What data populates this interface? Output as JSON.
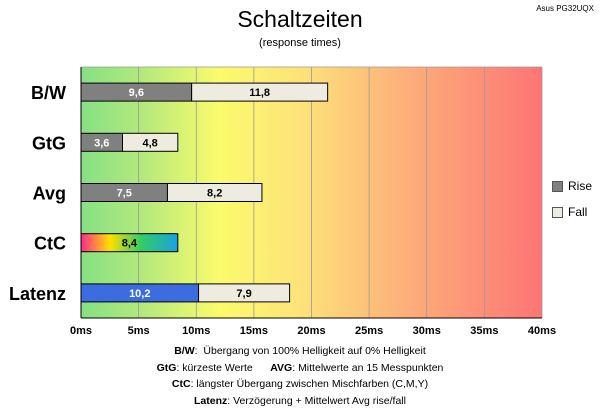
{
  "chart_data": {
    "type": "bar",
    "orientation": "horizontal",
    "stacked": true,
    "title": "Schaltzeiten",
    "subtitle": "(response times)",
    "model": "Asus PG32UQX",
    "xlabel": "",
    "ylabel": "",
    "xlim": [
      0,
      40
    ],
    "xticks": [
      "0ms",
      "5ms",
      "10ms",
      "15ms",
      "20ms",
      "25ms",
      "30ms",
      "35ms",
      "40ms"
    ],
    "categories": [
      "B/W",
      "GtG",
      "Avg",
      "CtC",
      "Latenz"
    ],
    "series": [
      {
        "name": "Rise",
        "color": "#808080",
        "values": [
          9.6,
          3.6,
          7.5,
          null,
          10.2
        ],
        "labels": [
          "9,6",
          "3,6",
          "7,5",
          "",
          "10,2"
        ]
      },
      {
        "name": "Fall",
        "color": "#eeece1",
        "values": [
          11.8,
          4.8,
          8.2,
          null,
          7.9
        ],
        "labels": [
          "11,8",
          "4,8",
          "8,2",
          "",
          "7,9"
        ]
      },
      {
        "name": "CtC",
        "color": "gradient",
        "values": [
          null,
          null,
          null,
          8.4,
          null
        ],
        "labels": [
          "",
          "",
          "",
          "8,4",
          ""
        ]
      }
    ],
    "latency_rise_color": "#3d6be0",
    "legend": [
      "Rise",
      "Fall"
    ],
    "legend_position": "right"
  },
  "notes": [
    {
      "key": "B/W",
      "text": "Übergang von 100% Helligkeit auf 0% Helligkeit"
    },
    {
      "key": "GtG",
      "text": "kürzeste  Werte",
      "key2": "AVG",
      "text2": "Mittelwerte  an 15 Messpunkten"
    },
    {
      "key": "CtC",
      "text": "längster Übergang  zwischen Mischfarben (C,M,Y)"
    },
    {
      "key": "Latenz",
      "text": "Verzögerung  + Mittelwert Avg rise/fall"
    }
  ]
}
